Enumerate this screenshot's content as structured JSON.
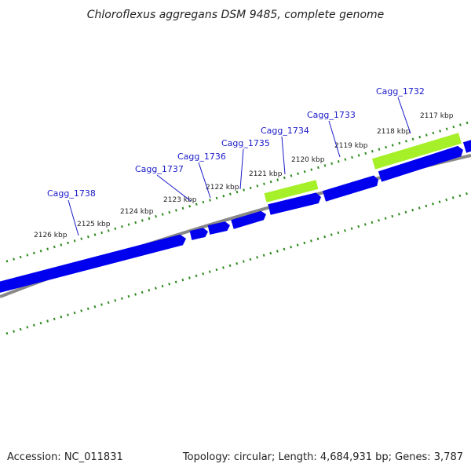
{
  "title": "Chloroflexus aggregans DSM 9485, complete genome",
  "footer": {
    "accession": "Accession: NC_011831",
    "summary": "Topology: circular; Length: 4,684,931 bp; Genes: 3,787"
  },
  "colors": {
    "gene": "#0000ee",
    "highlight": "#a6f02a",
    "tick": "#2e8b1e",
    "backbone": "#888888",
    "label": "#1a1ac8"
  },
  "ticks": [
    {
      "label": "2126 kbp"
    },
    {
      "label": "2125 kbp"
    },
    {
      "label": "2124 kbp"
    },
    {
      "label": "2123 kbp"
    },
    {
      "label": "2122 kbp"
    },
    {
      "label": "2121 kbp"
    },
    {
      "label": "2120 kbp"
    },
    {
      "label": "2119 kbp"
    },
    {
      "label": "2118 kbp"
    },
    {
      "label": "2117 kbp"
    }
  ],
  "genes": [
    {
      "label": "Cagg_1738"
    },
    {
      "label": "Cagg_1737"
    },
    {
      "label": "Cagg_1736"
    },
    {
      "label": "Cagg_1735"
    },
    {
      "label": "Cagg_1734"
    },
    {
      "label": "Cagg_1733"
    },
    {
      "label": "Cagg_1732"
    }
  ]
}
